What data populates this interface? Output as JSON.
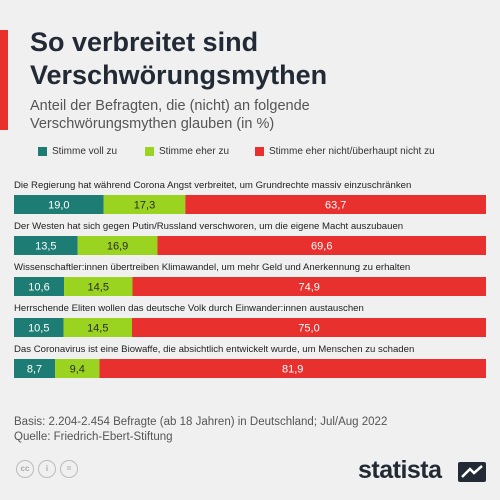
{
  "title_line1": "So verbreitet sind",
  "title_line2": "Verschwörungsmythen",
  "subtitle_line1": "Anteil der Befragten, die (nicht) an folgende",
  "subtitle_line2": "Verschwörungsmythen glauben (in %)",
  "colors": {
    "accent": "#e8302f",
    "voll": "#1d7d74",
    "eher": "#9ad421",
    "nicht": "#e8302f"
  },
  "chart_data": {
    "type": "bar",
    "orientation": "horizontal",
    "stacked": true,
    "categories": [
      "Die Regierung hat während Corona Angst verbreitet, um Grundrechte massiv einzuschränken",
      "Der Westen hat sich gegen Putin/Russland verschworen, um die eigene Macht auszubauen",
      "Wissenschaftler:innen übertreiben Klimawandel, um mehr Geld und Anerkennung zu erhalten",
      "Herrschende Eliten wollen das deutsche Volk durch Einwander:innen austauschen",
      "Das Coronavirus ist eine Biowaffe, die absichtlich entwickelt wurde, um Menschen zu schaden"
    ],
    "series": [
      {
        "name": "Stimme voll zu",
        "values": [
          19.0,
          13.5,
          10.6,
          10.5,
          8.7
        ],
        "labels": [
          "19,0",
          "13,5",
          "10,6",
          "10,5",
          "8,7"
        ]
      },
      {
        "name": "Stimme eher zu",
        "values": [
          17.3,
          16.9,
          14.5,
          14.5,
          9.4
        ],
        "labels": [
          "17,3",
          "16,9",
          "14,5",
          "14,5",
          "9,4"
        ]
      },
      {
        "name": "Stimme eher nicht/überhaupt nicht zu",
        "values": [
          63.7,
          69.6,
          74.9,
          75.0,
          81.9
        ],
        "labels": [
          "63,7",
          "69,6",
          "74,9",
          "75,0",
          "81,9"
        ]
      }
    ],
    "xlim": [
      0,
      100
    ],
    "legend": "top-left",
    "grid": false
  },
  "footer": {
    "basis": "Basis: 2.204-2.454 Befragte (ab 18 Jahren) in Deutschland; Jul/Aug 2022",
    "source": "Quelle: Friedrich-Ebert-Stiftung"
  },
  "icons": [
    "cc-icon",
    "attribution-icon",
    "no-derivatives-icon",
    "statista-logo-icon"
  ],
  "brand": "statista"
}
